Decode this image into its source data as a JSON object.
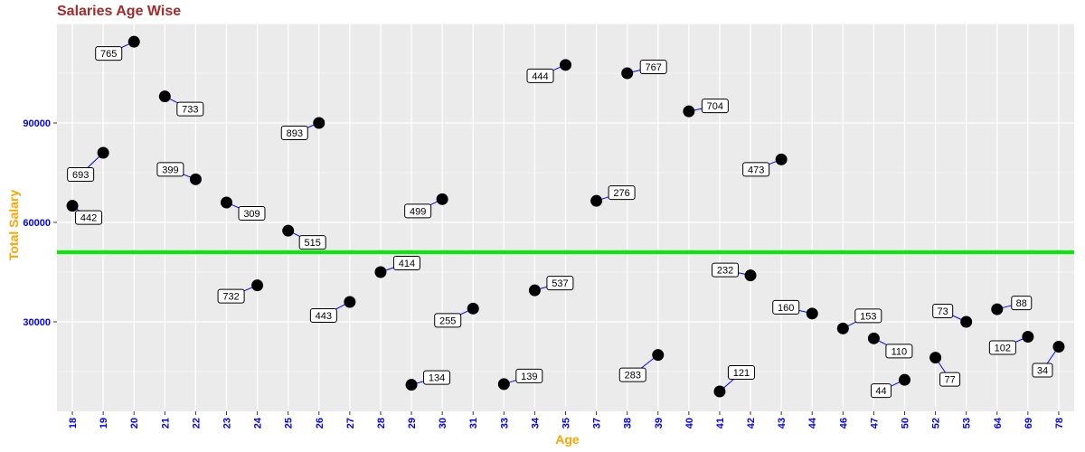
{
  "chart_data": {
    "type": "scatter",
    "title": "Salaries Age Wise",
    "xlabel": "Age",
    "ylabel": "Total Salary",
    "categories": [
      "18",
      "19",
      "20",
      "21",
      "22",
      "23",
      "24",
      "25",
      "26",
      "27",
      "28",
      "29",
      "30",
      "31",
      "33",
      "34",
      "35",
      "37",
      "38",
      "39",
      "40",
      "41",
      "42",
      "43",
      "44",
      "46",
      "47",
      "50",
      "52",
      "53",
      "64",
      "69",
      "78"
    ],
    "values": [
      65000,
      81000,
      114500,
      98000,
      73000,
      66000,
      41000,
      57500,
      90000,
      36000,
      45000,
      11000,
      67000,
      34000,
      11200,
      39500,
      107500,
      66500,
      105000,
      20000,
      93500,
      9000,
      44000,
      79000,
      32500,
      28000,
      25000,
      12500,
      19200,
      30000,
      33800,
      25500,
      22500
    ],
    "point_labels": [
      "442",
      "693",
      "765",
      "733",
      "399",
      "309",
      "732",
      "515",
      "893",
      "443",
      "414",
      "134",
      "499",
      "255",
      "139",
      "537",
      "444",
      "276",
      "767",
      "283",
      "704",
      "121",
      "232",
      "473",
      "160",
      "153",
      "110",
      "44",
      "77",
      "73",
      "88",
      "102",
      "34"
    ],
    "ylim": [
      3000,
      120000
    ],
    "yticks": [
      30000,
      60000,
      90000
    ],
    "hline": 51000,
    "grid": true,
    "legend": "none",
    "colors": {
      "points": "#000000",
      "hline": "#00ee00",
      "connector": "#0000ff",
      "tick_labels": "#0000ff",
      "axis_titles": "#ffa500",
      "title": "#a52a2a",
      "panel": "#ebebeb"
    }
  }
}
